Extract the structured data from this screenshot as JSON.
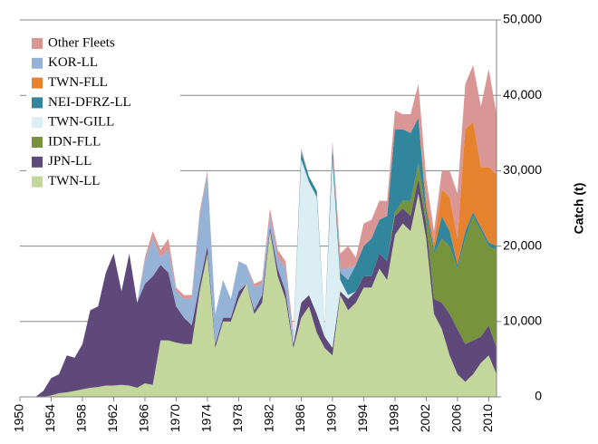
{
  "chart_data": {
    "type": "stacked_area",
    "y_label": "Catch (t)",
    "x": [
      1950,
      1951,
      1952,
      1953,
      1954,
      1955,
      1956,
      1957,
      1958,
      1959,
      1960,
      1961,
      1962,
      1963,
      1964,
      1965,
      1966,
      1967,
      1968,
      1969,
      1970,
      1971,
      1972,
      1973,
      1974,
      1975,
      1976,
      1977,
      1978,
      1979,
      1980,
      1981,
      1982,
      1983,
      1984,
      1985,
      1986,
      1987,
      1988,
      1989,
      1990,
      1991,
      1992,
      1993,
      1994,
      1995,
      1996,
      1997,
      1998,
      1999,
      2000,
      2001,
      2002,
      2003,
      2004,
      2005,
      2006,
      2007,
      2008,
      2009,
      2010,
      2011
    ],
    "xlim": [
      1950,
      2011
    ],
    "xticks": [
      1950,
      1954,
      1958,
      1962,
      1966,
      1970,
      1974,
      1978,
      1982,
      1986,
      1990,
      1994,
      1998,
      2002,
      2006,
      2010
    ],
    "ylim": [
      0,
      50000
    ],
    "yticks": [
      0,
      {
        "value": 10000,
        "label": "10,000"
      },
      {
        "value": 20000,
        "label": "20,000"
      },
      {
        "value": 30000,
        "label": "30,000"
      },
      {
        "value": 40000,
        "label": "40,000"
      },
      {
        "value": 50000,
        "label": "50,000"
      }
    ],
    "grid": true,
    "legend": "upper left",
    "series": [
      {
        "name": "TWN-LL",
        "color": "#c3d69b",
        "values": [
          0,
          0,
          0,
          0,
          200,
          500,
          600,
          800,
          1000,
          1200,
          1300,
          1500,
          1500,
          1600,
          1500,
          1200,
          1800,
          1600,
          7500,
          7500,
          7200,
          7000,
          7000,
          14000,
          19000,
          6500,
          10000,
          10000,
          13000,
          15000,
          11000,
          12500,
          22000,
          16000,
          13000,
          6500,
          10500,
          12000,
          8500,
          6500,
          5500,
          13500,
          11500,
          12500,
          14500,
          14500,
          17000,
          15500,
          21500,
          23000,
          22000,
          27000,
          21000,
          11000,
          9000,
          5500,
          3000,
          2000,
          3000,
          4500,
          5500,
          3000
        ]
      },
      {
        "name": "JPN-LL",
        "color": "#5f497a",
        "values": [
          0,
          0,
          0,
          800,
          2300,
          2500,
          4900,
          4400,
          6000,
          10300,
          10700,
          15000,
          17500,
          12400,
          17500,
          11300,
          13200,
          14400,
          10000,
          9000,
          4800,
          3500,
          2500,
          1000,
          1000,
          500,
          500,
          500,
          1000,
          0,
          500,
          1000,
          500,
          1000,
          1000,
          500,
          2000,
          1500,
          2500,
          1500,
          1000,
          500,
          1500,
          1500,
          1500,
          1500,
          2000,
          2500,
          2500,
          2000,
          2000,
          2000,
          2000,
          2000,
          3500,
          5500,
          6000,
          5000,
          4500,
          3500,
          4000,
          3500
        ]
      },
      {
        "name": "IDN-FLL",
        "color": "#77933c",
        "values": [
          0,
          0,
          0,
          0,
          0,
          0,
          0,
          0,
          0,
          0,
          0,
          0,
          0,
          0,
          0,
          0,
          0,
          0,
          0,
          0,
          0,
          0,
          0,
          0,
          0,
          0,
          0,
          0,
          0,
          0,
          0,
          0,
          0,
          0,
          0,
          0,
          0,
          0,
          0,
          0,
          0,
          0,
          0,
          0,
          0,
          0,
          0,
          0,
          500,
          1000,
          2000,
          2000,
          1000,
          6000,
          8500,
          9000,
          8000,
          14000,
          16500,
          14000,
          10500,
          13000
        ]
      },
      {
        "name": "TWN-GILL",
        "color": "#dbeef4",
        "values": [
          0,
          0,
          0,
          0,
          0,
          0,
          0,
          0,
          0,
          0,
          0,
          0,
          0,
          0,
          0,
          0,
          0,
          0,
          0,
          0,
          0,
          0,
          0,
          0,
          0,
          0,
          0,
          0,
          0,
          0,
          0,
          0,
          0,
          0,
          0,
          500,
          19000,
          15000,
          15500,
          1000,
          25000,
          1500,
          500,
          0,
          0,
          0,
          0,
          0,
          0,
          0,
          0,
          0,
          0,
          0,
          0,
          0,
          0,
          0,
          0,
          0,
          0,
          0
        ]
      },
      {
        "name": "NEI-DFRZ-LL",
        "color": "#31859c",
        "values": [
          0,
          0,
          0,
          0,
          0,
          0,
          0,
          0,
          0,
          0,
          0,
          0,
          0,
          0,
          0,
          0,
          0,
          0,
          0,
          0,
          0,
          0,
          0,
          0,
          0,
          0,
          0,
          0,
          0,
          0,
          0,
          0,
          0,
          0,
          0,
          0,
          1000,
          700,
          800,
          200,
          1500,
          1000,
          2000,
          3500,
          4000,
          5000,
          4500,
          6000,
          11000,
          9500,
          9000,
          6000,
          1000,
          500,
          3000,
          2000,
          500,
          1000,
          500,
          500,
          500,
          500
        ]
      },
      {
        "name": "TWN-FLL",
        "color": "#e6812e",
        "values": [
          0,
          0,
          0,
          0,
          0,
          0,
          0,
          0,
          0,
          0,
          0,
          0,
          0,
          0,
          0,
          0,
          0,
          0,
          0,
          0,
          0,
          0,
          0,
          0,
          0,
          0,
          0,
          0,
          0,
          0,
          0,
          0,
          0,
          0,
          0,
          0,
          0,
          0,
          0,
          0,
          0,
          0,
          0,
          0,
          0,
          0,
          0,
          0,
          0,
          0,
          0,
          0,
          1000,
          1000,
          3500,
          4500,
          3500,
          13500,
          12000,
          8000,
          10000,
          9500
        ]
      },
      {
        "name": "KOR-LL",
        "color": "#95b3d7",
        "values": [
          0,
          0,
          0,
          0,
          0,
          0,
          0,
          0,
          0,
          0,
          0,
          0,
          0,
          0,
          0,
          0,
          3000,
          5000,
          1000,
          3000,
          2000,
          2500,
          3500,
          9000,
          9500,
          4000,
          5000,
          2500,
          4000,
          2500,
          3000,
          1500,
          1500,
          1500,
          3000,
          500,
          0,
          0,
          0,
          0,
          0,
          500,
          1500,
          0,
          0,
          0,
          0,
          0,
          0,
          0,
          0,
          0,
          0,
          0,
          0,
          0,
          0,
          0,
          0,
          0,
          0,
          0
        ]
      },
      {
        "name": "Other Fleets",
        "color": "#d99694",
        "values": [
          0,
          0,
          0,
          0,
          0,
          0,
          0,
          0,
          0,
          0,
          0,
          0,
          0,
          0,
          0,
          0,
          500,
          1000,
          1000,
          1500,
          500,
          500,
          500,
          500,
          500,
          0,
          0,
          0,
          0,
          0,
          500,
          500,
          1000,
          1000,
          1000,
          500,
          500,
          0,
          0,
          0,
          1000,
          2000,
          3000,
          1000,
          3000,
          2500,
          2500,
          2000,
          2500,
          2000,
          2500,
          4500,
          3000,
          1500,
          2500,
          3500,
          6000,
          6000,
          7500,
          8000,
          13000,
          8000
        ]
      }
    ]
  }
}
